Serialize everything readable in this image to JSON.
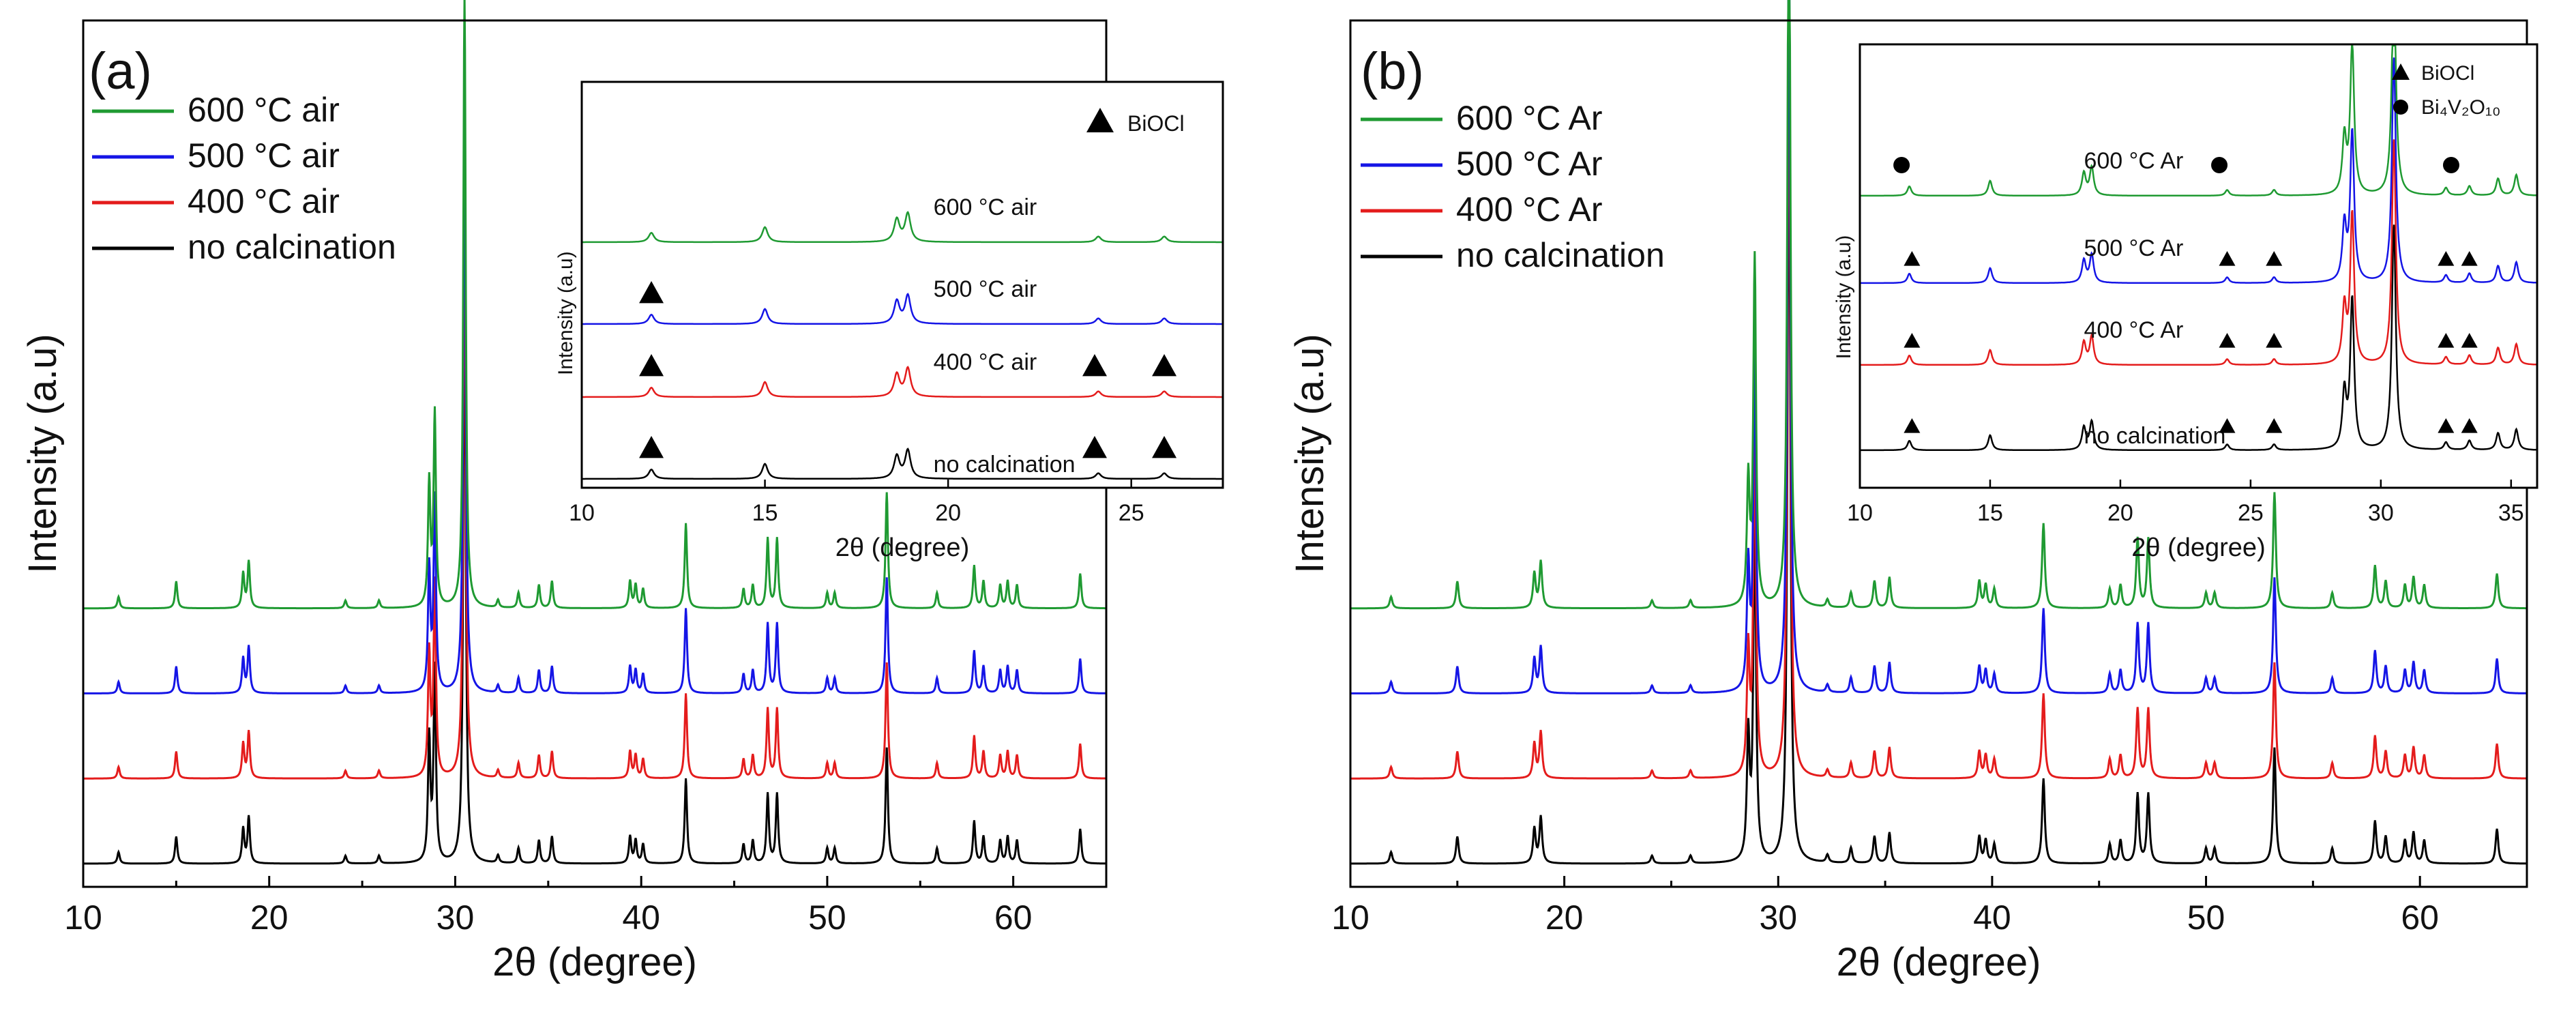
{
  "colors": {
    "green": "#1f9a32",
    "blue": "#1515e6",
    "red": "#e41c1c",
    "black": "#000000"
  },
  "chart_data": [
    {
      "type": "line",
      "panel_label": "(a)",
      "xlabel": "2θ (degree)",
      "ylabel": "Intensity (a.u)",
      "xlim": [
        10,
        65
      ],
      "ylim": [
        -0.3,
        10.9
      ],
      "xticks": [
        10,
        20,
        30,
        40,
        50,
        60
      ],
      "legend": [
        {
          "label": "600 °C air",
          "color_key": "green"
        },
        {
          "label": "500 °C air",
          "color_key": "blue"
        },
        {
          "label": "400 °C air",
          "color_key": "red"
        },
        {
          "label": "no calcination",
          "color_key": "black"
        }
      ],
      "series": [
        {
          "name": "600 °C air",
          "color_key": "green",
          "offset": 3.3,
          "scale": 1.0
        },
        {
          "name": "500 °C air",
          "color_key": "blue",
          "offset": 2.2,
          "scale": 1.0
        },
        {
          "name": "400 °C air",
          "color_key": "red",
          "offset": 1.1,
          "scale": 1.0
        },
        {
          "name": "no calcination",
          "color_key": "black",
          "offset": 0.0,
          "scale": 1.0
        }
      ],
      "peaks": [
        [
          11.9,
          0.15
        ],
        [
          15.0,
          0.35
        ],
        [
          18.6,
          0.45
        ],
        [
          18.9,
          0.6
        ],
        [
          24.1,
          0.1
        ],
        [
          25.9,
          0.1
        ],
        [
          28.6,
          1.6
        ],
        [
          28.9,
          2.5
        ],
        [
          30.5,
          8.0
        ],
        [
          32.3,
          0.1
        ],
        [
          33.4,
          0.2
        ],
        [
          34.5,
          0.3
        ],
        [
          35.2,
          0.35
        ],
        [
          39.4,
          0.35
        ],
        [
          39.7,
          0.3
        ],
        [
          40.1,
          0.25
        ],
        [
          42.4,
          1.1
        ],
        [
          45.5,
          0.25
        ],
        [
          46.0,
          0.3
        ],
        [
          46.8,
          0.9
        ],
        [
          47.3,
          0.9
        ],
        [
          50.0,
          0.2
        ],
        [
          50.4,
          0.2
        ],
        [
          53.2,
          1.5
        ],
        [
          55.9,
          0.2
        ],
        [
          57.9,
          0.55
        ],
        [
          58.4,
          0.35
        ],
        [
          59.3,
          0.3
        ],
        [
          59.7,
          0.35
        ],
        [
          60.2,
          0.3
        ],
        [
          63.6,
          0.45
        ]
      ],
      "inset": {
        "xlabel": "2θ (degree)",
        "ylabel": "Intensity (a.u)",
        "xlim": [
          10,
          27.5
        ],
        "xticks": [
          10,
          15,
          20,
          25
        ],
        "legend_label": "BiOCl",
        "trace_labels": [
          "600 °C air",
          "500 °C air",
          "400 °C air",
          "no calcination"
        ],
        "peaks": [
          [
            11.9,
            0.25
          ],
          [
            15.0,
            0.4
          ],
          [
            18.6,
            0.6
          ],
          [
            18.9,
            0.75
          ],
          [
            24.1,
            0.15
          ],
          [
            25.9,
            0.15
          ]
        ],
        "markers": [
          {
            "series": "no calcination",
            "x": [
              11.9,
              24.0,
              25.9
            ]
          },
          {
            "series": "400 °C air",
            "x": [
              11.9,
              24.0,
              25.9
            ]
          },
          {
            "series": "500 °C air",
            "x": [
              11.9
            ]
          }
        ]
      }
    },
    {
      "type": "line",
      "panel_label": "(b)",
      "xlabel": "2θ (degree)",
      "ylabel": "Intensity (a.u)",
      "xlim": [
        10,
        65
      ],
      "ylim": [
        -0.3,
        10.9
      ],
      "xticks": [
        10,
        20,
        30,
        40,
        50,
        60
      ],
      "legend": [
        {
          "label": "600 °C Ar",
          "color_key": "green"
        },
        {
          "label": "500 °C Ar",
          "color_key": "blue"
        },
        {
          "label": "400 °C Ar",
          "color_key": "red"
        },
        {
          "label": "no calcination",
          "color_key": "black"
        }
      ],
      "series": [
        {
          "name": "600 °C Ar",
          "color_key": "green",
          "offset": 3.3,
          "scale": 1.0
        },
        {
          "name": "500 °C Ar",
          "color_key": "blue",
          "offset": 2.2,
          "scale": 1.0
        },
        {
          "name": "400 °C Ar",
          "color_key": "red",
          "offset": 1.1,
          "scale": 1.0
        },
        {
          "name": "no calcination",
          "color_key": "black",
          "offset": 0.0,
          "scale": 1.0
        }
      ],
      "peaks": [
        [
          11.9,
          0.15
        ],
        [
          15.0,
          0.35
        ],
        [
          18.6,
          0.45
        ],
        [
          18.9,
          0.6
        ],
        [
          24.1,
          0.1
        ],
        [
          25.9,
          0.1
        ],
        [
          28.6,
          1.6
        ],
        [
          28.9,
          4.5
        ],
        [
          30.5,
          10.5
        ],
        [
          32.3,
          0.1
        ],
        [
          33.4,
          0.2
        ],
        [
          34.5,
          0.35
        ],
        [
          35.2,
          0.4
        ],
        [
          39.4,
          0.35
        ],
        [
          39.7,
          0.3
        ],
        [
          40.1,
          0.25
        ],
        [
          42.4,
          1.1
        ],
        [
          45.5,
          0.25
        ],
        [
          46.0,
          0.3
        ],
        [
          46.8,
          0.9
        ],
        [
          47.3,
          0.9
        ],
        [
          50.0,
          0.2
        ],
        [
          50.4,
          0.2
        ],
        [
          53.2,
          1.5
        ],
        [
          55.9,
          0.2
        ],
        [
          57.9,
          0.55
        ],
        [
          58.4,
          0.35
        ],
        [
          59.3,
          0.3
        ],
        [
          59.7,
          0.4
        ],
        [
          60.2,
          0.3
        ],
        [
          63.6,
          0.45
        ]
      ],
      "inset": {
        "xlabel": "2θ (degree)",
        "ylabel": "Intensity (a.u)",
        "xlim": [
          10,
          36
        ],
        "xticks": [
          10,
          15,
          20,
          25,
          30,
          35
        ],
        "legend_label": "BiOCl",
        "legend_label_2": "Bi₄V₂O₁₀",
        "trace_labels": [
          "600 °C Ar",
          "500 °C Ar",
          "400 °C Ar",
          "no calcination"
        ],
        "peaks": [
          [
            11.9,
            0.25
          ],
          [
            15.0,
            0.4
          ],
          [
            18.6,
            0.6
          ],
          [
            18.9,
            0.75
          ],
          [
            24.1,
            0.15
          ],
          [
            25.9,
            0.15
          ],
          [
            28.6,
            1.5
          ],
          [
            28.9,
            4.0
          ],
          [
            30.5,
            6.0
          ],
          [
            32.5,
            0.2
          ],
          [
            33.4,
            0.25
          ],
          [
            34.5,
            0.45
          ],
          [
            35.2,
            0.55
          ]
        ],
        "markers": [
          {
            "series": "no calcination",
            "x": [
              12.0,
              24.1,
              25.9,
              32.5,
              33.4
            ]
          },
          {
            "series": "400 °C Ar",
            "x": [
              12.0,
              24.1,
              25.9,
              32.5,
              33.4
            ]
          },
          {
            "series": "500 °C Ar",
            "x": [
              12.0,
              24.1,
              25.9,
              32.5,
              33.4
            ]
          }
        ],
        "circle_markers": {
          "series": "600 °C Ar",
          "x": [
            11.6,
            23.8,
            32.7
          ]
        }
      }
    }
  ]
}
